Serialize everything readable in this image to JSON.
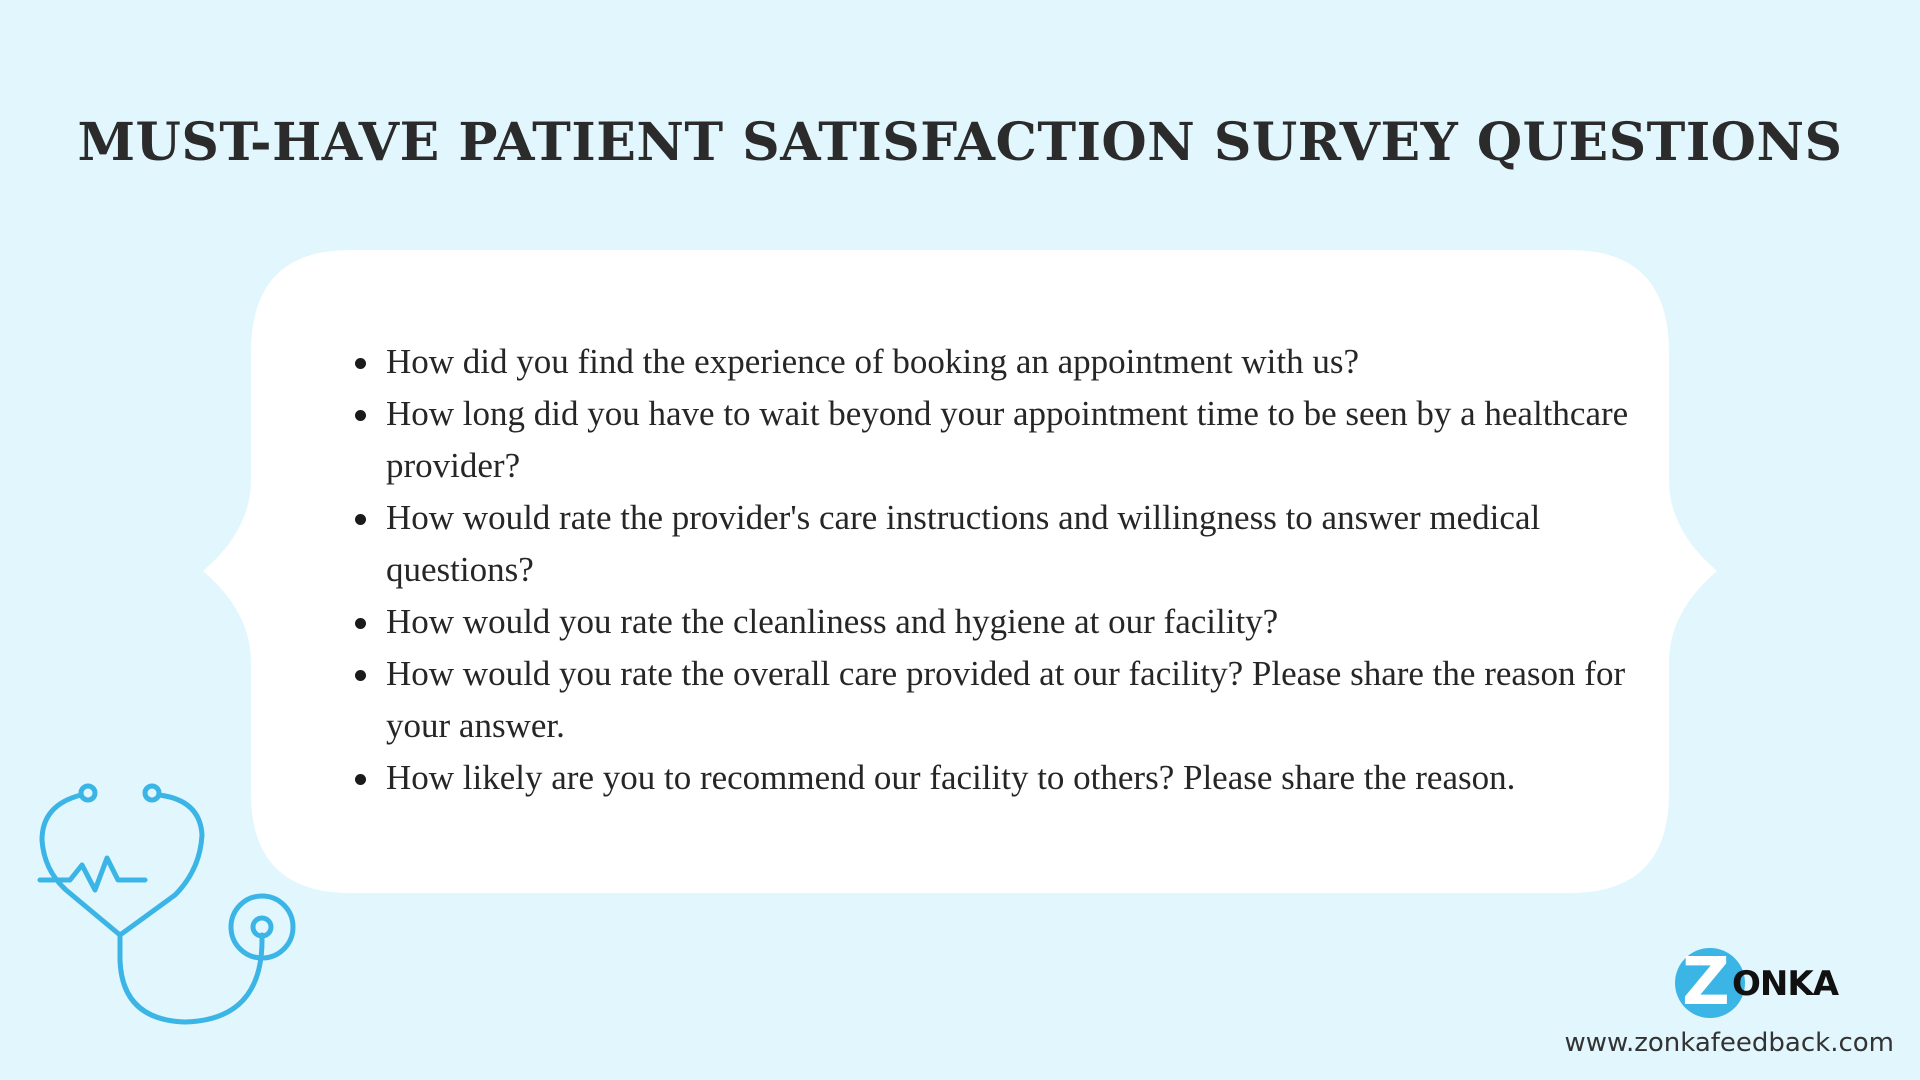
{
  "title": "MUST-HAVE PATIENT SATISFACTION SURVEY QUESTIONS",
  "questions": [
    "How did you find the experience of booking an appointment with us?",
    "How long did you have to wait beyond your appointment time to be seen by a healthcare provider?",
    "How would rate the provider's care instructions and willingness to answer medical questions?",
    "How would you rate the cleanliness and hygiene at our facility?",
    "How would you rate the overall care provided at our facility? Please share the reason for your answer.",
    "How likely are you to recommend our facility to others? Please share the reason."
  ],
  "logo": {
    "z": "Z",
    "rest": "ONKA",
    "text": "ZONKA"
  },
  "url": "www.zonkafeedback.com",
  "colors": {
    "background": "#e1f6fd",
    "card": "#ffffff",
    "accent": "#3bb5e6",
    "text": "#262626"
  },
  "icons": [
    "stethoscope-icon"
  ]
}
